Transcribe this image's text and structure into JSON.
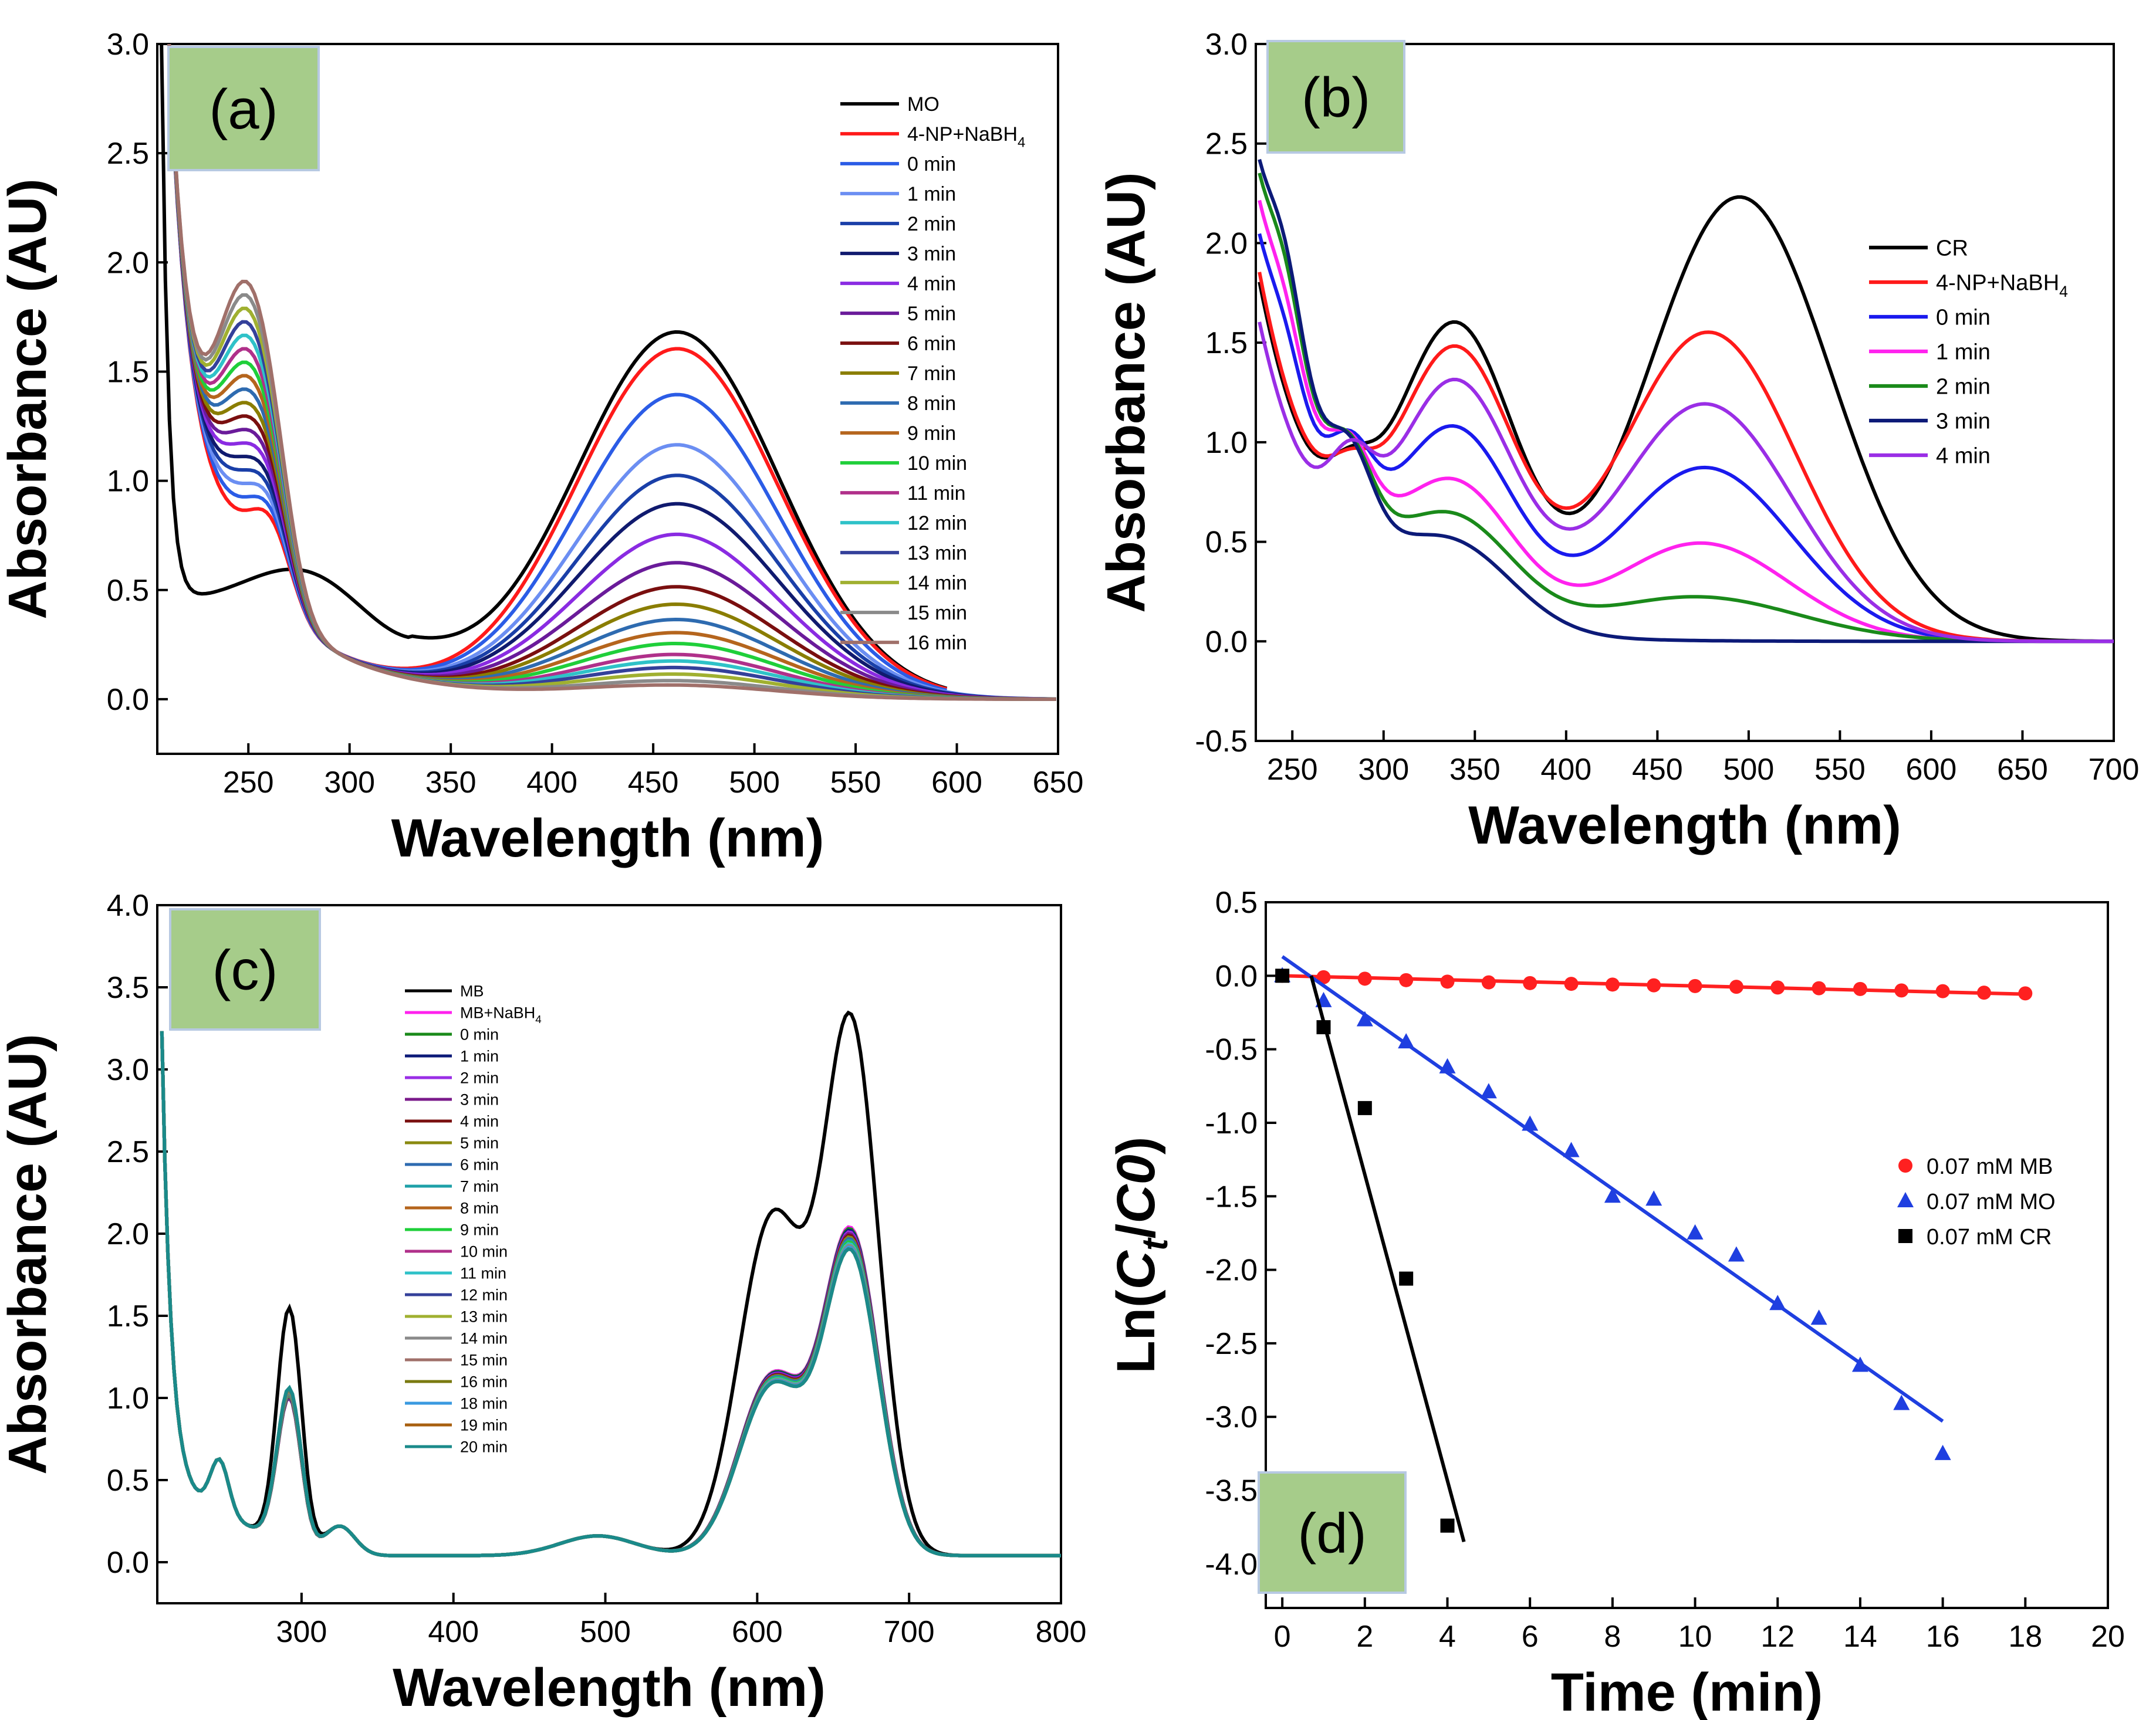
{
  "chart_data": [
    {
      "type": "line",
      "panel_label": "(a)",
      "xlabel": "Wavelength (nm)",
      "ylabel": "Absorbance (AU)",
      "xlim": [
        205,
        650
      ],
      "ylim": [
        -0.25,
        3.0
      ],
      "xticks": [
        250,
        300,
        350,
        400,
        450,
        500,
        550,
        600,
        650
      ],
      "yticks": [
        0.0,
        0.5,
        1.0,
        1.5,
        2.0,
        2.5,
        3.0
      ],
      "legend": [
        {
          "label": "MO",
          "color": "#000000"
        },
        {
          "label": "4-NP+NaBH",
          "sub": "4",
          "color": "#ff1a1a"
        },
        {
          "label": "0 min",
          "color": "#2b5ce6"
        },
        {
          "label": "1 min",
          "color": "#6b8ef2"
        },
        {
          "label": "2 min",
          "color": "#1a3fa8"
        },
        {
          "label": "3 min",
          "color": "#101a6e"
        },
        {
          "label": "4 min",
          "color": "#8a2be2"
        },
        {
          "label": "5 min",
          "color": "#6a1b9a"
        },
        {
          "label": "6 min",
          "color": "#7a0f0f"
        },
        {
          "label": "7 min",
          "color": "#8a7d00"
        },
        {
          "label": "8 min",
          "color": "#2e6bb0"
        },
        {
          "label": "9 min",
          "color": "#b5651d"
        },
        {
          "label": "10 min",
          "color": "#1fcf3a"
        },
        {
          "label": "11 min",
          "color": "#b0308a"
        },
        {
          "label": "12 min",
          "color": "#2fc2c8"
        },
        {
          "label": "13 min",
          "color": "#34409a"
        },
        {
          "label": "14 min",
          "color": "#a0b030"
        },
        {
          "label": "15 min",
          "color": "#8a8a8a"
        },
        {
          "label": "16 min",
          "color": "#a0706a"
        }
      ],
      "peak_abs": [
        1.67,
        1.6,
        1.39,
        1.16,
        1.02,
        0.89,
        0.75,
        0.62,
        0.51,
        0.43,
        0.36,
        0.3,
        0.25,
        0.2,
        0.17,
        0.14,
        0.11,
        0.08,
        0.06
      ],
      "peak_nm": 462
    },
    {
      "type": "line",
      "panel_label": "(b)",
      "xlabel": "Wavelength (nm)",
      "ylabel": "Absorbance (AU)",
      "xlim": [
        230,
        700
      ],
      "ylim": [
        -0.5,
        3.0
      ],
      "xticks": [
        250,
        300,
        350,
        400,
        450,
        500,
        550,
        600,
        650,
        700
      ],
      "yticks": [
        -0.5,
        0.0,
        0.5,
        1.0,
        1.5,
        2.0,
        2.5,
        3.0
      ],
      "legend": [
        {
          "label": "CR",
          "color": "#000000"
        },
        {
          "label": "4-NP+NaBH",
          "sub": "4",
          "color": "#ff1a1a"
        },
        {
          "label": "0 min",
          "color": "#1a1aee"
        },
        {
          "label": "1 min",
          "color": "#ff22ee"
        },
        {
          "label": "2 min",
          "color": "#1a8a1a"
        },
        {
          "label": "3 min",
          "color": "#0c1a78"
        },
        {
          "label": "4 min",
          "color": "#9a2ee6"
        }
      ],
      "peak_abs_500": [
        2.23,
        1.55,
        0.87,
        0.49,
        0.22,
        0.0,
        1.19
      ]
    },
    {
      "type": "line",
      "panel_label": "(c)",
      "xlabel": "Wavelength (nm)",
      "ylabel": "Absorbance (AU)",
      "xlim": [
        205,
        800
      ],
      "ylim": [
        -0.25,
        4.0
      ],
      "xticks": [
        300,
        400,
        500,
        600,
        700,
        800
      ],
      "yticks": [
        0.0,
        0.5,
        1.0,
        1.5,
        2.0,
        2.5,
        3.0,
        3.5,
        4.0
      ],
      "legend": [
        {
          "label": "MB",
          "color": "#000000"
        },
        {
          "label": " MB+NaBH",
          "sub": "4",
          "color": "#ff22ee"
        },
        {
          "label": "0 min",
          "color": "#1a8a1a"
        },
        {
          "label": "1 min",
          "color": "#0c1a78"
        },
        {
          "label": "2 min",
          "color": "#9a2ee6"
        },
        {
          "label": "3 min",
          "color": "#7a1a8a"
        },
        {
          "label": "4 min",
          "color": "#7a1010"
        },
        {
          "label": "5 min",
          "color": "#8a8a10"
        },
        {
          "label": "6 min",
          "color": "#2e6bb0"
        },
        {
          "label": "7 min",
          "color": "#1fa0a8"
        },
        {
          "label": "8 min",
          "color": "#b5651d"
        },
        {
          "label": "9 min",
          "color": "#1fcf3a"
        },
        {
          "label": "10 min",
          "color": "#b0308a"
        },
        {
          "label": "11 min",
          "color": "#2fc2c8"
        },
        {
          "label": "12 min",
          "color": "#34409a"
        },
        {
          "label": "13 min",
          "color": "#a0b030"
        },
        {
          "label": "14 min",
          "color": "#8a8a8a"
        },
        {
          "label": "15 min",
          "color": "#a0706a"
        },
        {
          "label": "16 min",
          "color": "#7a7a10"
        },
        {
          "label": "18 min",
          "color": "#3a9ae0"
        },
        {
          "label": "19 min",
          "color": "#a86010"
        },
        {
          "label": "20 min",
          "color": "#1a8a8a"
        }
      ],
      "peak_abs_660": [
        3.17,
        1.93,
        1.92,
        1.91,
        1.9,
        1.89,
        1.88,
        1.87,
        1.86,
        1.85,
        1.84,
        1.84,
        1.83,
        1.83,
        1.82,
        1.82,
        1.82,
        1.81,
        1.81,
        1.81,
        1.8,
        1.8
      ]
    },
    {
      "type": "scatter",
      "panel_label": "(d)",
      "xlabel": "Time (min)",
      "ylabel_parts": [
        "Ln(",
        "C",
        "t",
        "/",
        "C0",
        ")"
      ],
      "xlim": [
        -0.4,
        20
      ],
      "ylim": [
        -4.3,
        0.5
      ],
      "xticks": [
        0,
        2,
        4,
        6,
        8,
        10,
        12,
        14,
        16,
        18,
        20
      ],
      "yticks": [
        0.5,
        0.0,
        -0.5,
        -1.0,
        -1.5,
        -2.0,
        -2.5,
        -3.0,
        -3.5,
        -4.0
      ],
      "series": [
        {
          "name": "0.07 mM MB",
          "marker": "circle",
          "color": "#ff2020",
          "x": [
            0,
            1,
            2,
            3,
            4,
            5,
            6,
            7,
            8,
            9,
            10,
            11,
            12,
            13,
            14,
            15,
            16,
            17,
            18
          ],
          "y": [
            0.0,
            -0.01,
            -0.02,
            -0.03,
            -0.04,
            -0.045,
            -0.05,
            -0.055,
            -0.06,
            -0.065,
            -0.07,
            -0.075,
            -0.08,
            -0.085,
            -0.09,
            -0.1,
            -0.105,
            -0.115,
            -0.12
          ],
          "fit": [
            [
              0,
              0.0
            ],
            [
              18,
              -0.125
            ]
          ]
        },
        {
          "name": "0.07 mM MO",
          "marker": "triangle",
          "color": "#1f3fe0",
          "x": [
            0,
            1,
            2,
            3,
            4,
            5,
            6,
            7,
            8,
            9,
            10,
            11,
            12,
            13,
            14,
            15,
            16
          ],
          "y": [
            0.0,
            -0.17,
            -0.3,
            -0.45,
            -0.62,
            -0.79,
            -1.01,
            -1.19,
            -1.5,
            -1.52,
            -1.75,
            -1.9,
            -2.23,
            -2.33,
            -2.65,
            -2.91,
            -3.25
          ],
          "fit": [
            [
              0,
              0.13
            ],
            [
              16,
              -3.03
            ]
          ]
        },
        {
          "name": "0.07 mM CR",
          "marker": "square",
          "color": "#000000",
          "x": [
            0,
            1,
            2,
            3,
            4
          ],
          "y": [
            0.0,
            -0.35,
            -0.9,
            -2.06,
            -3.74
          ],
          "fit": [
            [
              0.7,
              0.0
            ],
            [
              4.4,
              -3.85
            ]
          ]
        }
      ]
    }
  ]
}
